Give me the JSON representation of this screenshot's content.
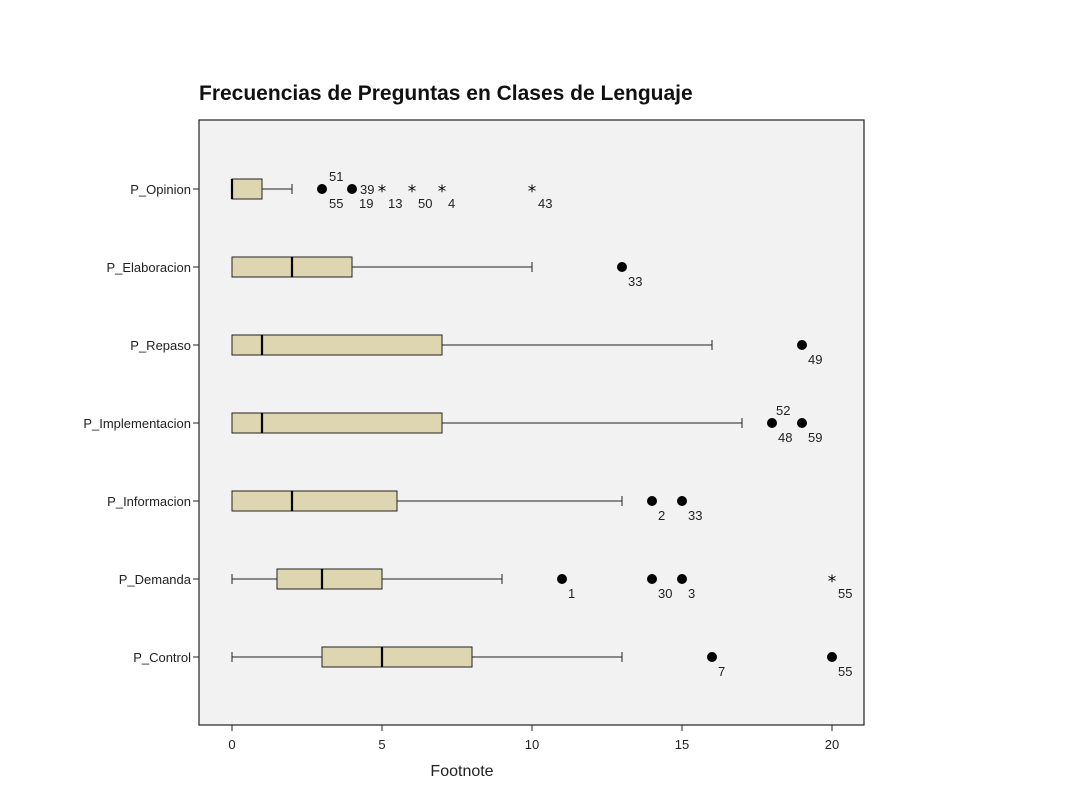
{
  "chart_data": {
    "type": "boxplot",
    "title": "Frecuencias de Preguntas en Clases de Lenguaje",
    "xlabel": "Footnote",
    "ylabel": "",
    "xlim": [
      -1,
      21
    ],
    "xticks": [
      0,
      5,
      10,
      15,
      20
    ],
    "grid": false,
    "colors": {
      "box_fill": "#ddd6b0",
      "plot_bg": "#f2f2f2",
      "stroke": "#222222"
    },
    "categories": [
      "P_Opinion",
      "P_Elaboracion",
      "P_Repaso",
      "P_Implementacion",
      "P_Informacion",
      "P_Demanda",
      "P_Control"
    ],
    "boxes": [
      {
        "name": "P_Opinion",
        "min": 0,
        "q1": 0,
        "median": 0,
        "q3": 1,
        "max": 2,
        "outliers": [
          {
            "value": 3,
            "kind": "circle",
            "labels": [
              "51",
              "55"
            ]
          },
          {
            "value": 4,
            "kind": "circle",
            "labels": [
              "39",
              "19"
            ]
          },
          {
            "value": 5,
            "kind": "star",
            "labels": [
              "13"
            ]
          },
          {
            "value": 6,
            "kind": "star",
            "labels": [
              "50"
            ]
          },
          {
            "value": 7,
            "kind": "star",
            "labels": [
              "4"
            ]
          },
          {
            "value": 10,
            "kind": "star",
            "labels": [
              "43"
            ]
          }
        ]
      },
      {
        "name": "P_Elaboracion",
        "min": 0,
        "q1": 0,
        "median": 2,
        "q3": 4,
        "max": 10,
        "outliers": [
          {
            "value": 13,
            "kind": "circle",
            "labels": [
              "33"
            ]
          }
        ]
      },
      {
        "name": "P_Repaso",
        "min": 0,
        "q1": 0,
        "median": 1,
        "q3": 7,
        "max": 16,
        "outliers": [
          {
            "value": 19,
            "kind": "circle",
            "labels": [
              "49"
            ]
          }
        ]
      },
      {
        "name": "P_Implementacion",
        "min": 0,
        "q1": 0,
        "median": 1,
        "q3": 7,
        "max": 17,
        "outliers": [
          {
            "value": 18,
            "kind": "circle",
            "labels": [
              "52",
              "48"
            ]
          },
          {
            "value": 19,
            "kind": "circle",
            "labels": [
              "59"
            ]
          }
        ]
      },
      {
        "name": "P_Informacion",
        "min": 0,
        "q1": 0,
        "median": 2,
        "q3": 5.5,
        "max": 13,
        "outliers": [
          {
            "value": 14,
            "kind": "circle",
            "labels": [
              "2"
            ]
          },
          {
            "value": 15,
            "kind": "circle",
            "labels": [
              "33"
            ]
          }
        ]
      },
      {
        "name": "P_Demanda",
        "min": 0,
        "q1": 1.5,
        "median": 3,
        "q3": 5,
        "max": 9,
        "outliers": [
          {
            "value": 11,
            "kind": "circle",
            "labels": [
              "1"
            ]
          },
          {
            "value": 14,
            "kind": "circle",
            "labels": [
              "30"
            ]
          },
          {
            "value": 15,
            "kind": "circle",
            "labels": [
              "3"
            ]
          },
          {
            "value": 20,
            "kind": "star",
            "labels": [
              "55"
            ]
          }
        ]
      },
      {
        "name": "P_Control",
        "min": 0,
        "q1": 3,
        "median": 5,
        "q3": 8,
        "max": 13,
        "outliers": [
          {
            "value": 16,
            "kind": "circle",
            "labels": [
              "7"
            ]
          },
          {
            "value": 20,
            "kind": "circle",
            "labels": [
              "55"
            ]
          }
        ]
      }
    ]
  }
}
